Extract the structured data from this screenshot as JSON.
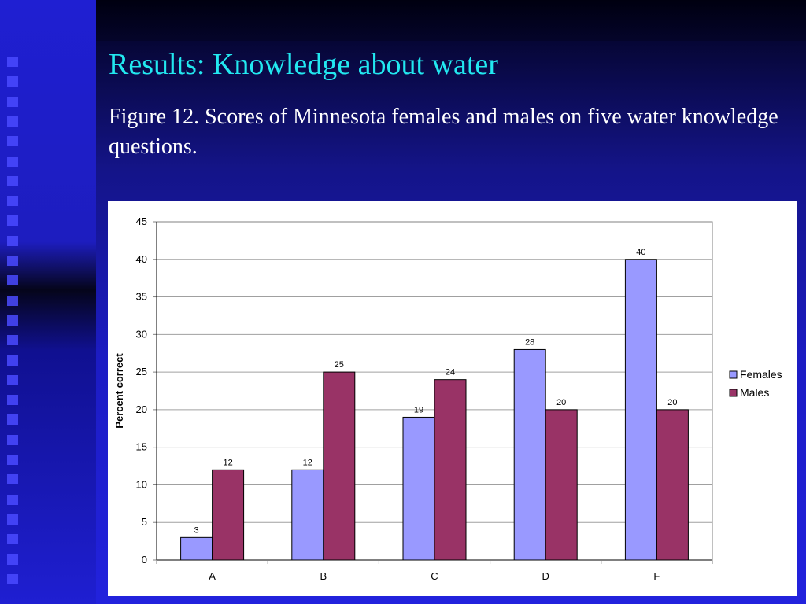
{
  "slide": {
    "title": "Results: Knowledge about water",
    "subtitle": "Figure 12. Scores of Minnesota females and males on five water knowledge questions."
  },
  "colors": {
    "females": "#9999ff",
    "males": "#993366",
    "title": "#22e8f0"
  },
  "chart_data": {
    "type": "bar",
    "categories": [
      "A",
      "B",
      "C",
      "D",
      "F"
    ],
    "series": [
      {
        "name": "Females",
        "values": [
          3,
          12,
          19,
          28,
          40
        ]
      },
      {
        "name": "Males",
        "values": [
          12,
          25,
          24,
          20,
          20
        ]
      }
    ],
    "ylabel": "Percent correct",
    "ylim": [
      0,
      45
    ],
    "yticks": [
      0,
      5,
      10,
      15,
      20,
      25,
      30,
      35,
      40,
      45
    ],
    "grid": true,
    "legend": "right",
    "data_labels": true
  }
}
